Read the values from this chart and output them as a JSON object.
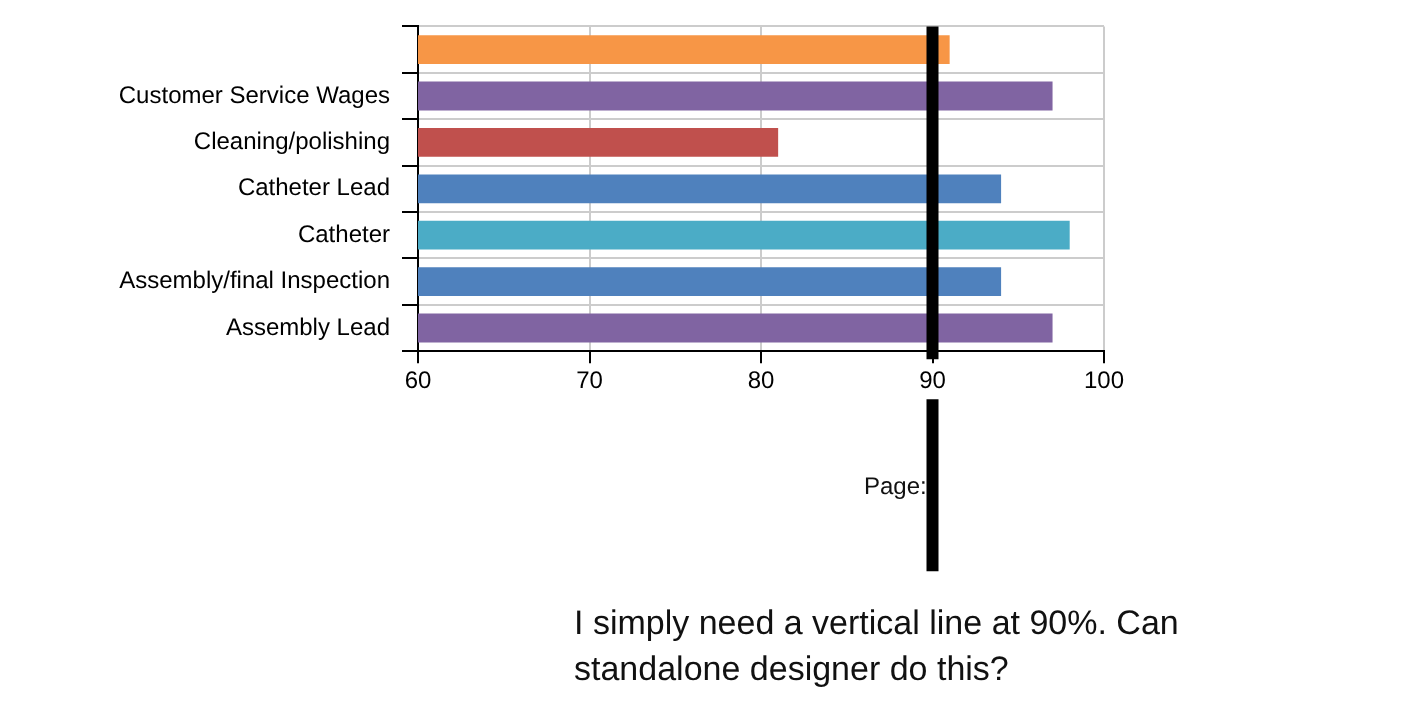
{
  "chart_data": {
    "type": "bar",
    "orientation": "horizontal",
    "categories": [
      null,
      "Customer Service Wages",
      "Cleaning/polishing",
      "Catheter Lead",
      "Catheter",
      "Assembly/final Inspection",
      "Assembly Lead"
    ],
    "values": [
      91,
      97,
      81,
      94,
      98,
      94,
      97
    ],
    "colors": [
      "#f79646",
      "#8064a2",
      "#c0504d",
      "#4f81bd",
      "#4bacc6",
      "#4f81bd",
      "#8064a2"
    ],
    "xlim": [
      60,
      100
    ],
    "xticks": [
      60,
      70,
      80,
      90,
      100
    ],
    "grid": true,
    "ref_lines": [
      {
        "axis": "x",
        "value": 90,
        "color": "#000000"
      }
    ],
    "annotations": [
      "Page:",
      "I simply need a vertical line at 90%. Can standalone designer do this?"
    ]
  }
}
